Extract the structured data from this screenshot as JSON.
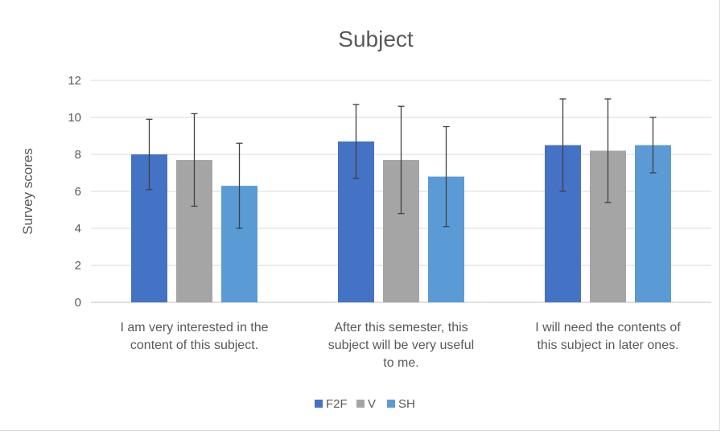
{
  "chart_data": {
    "type": "bar",
    "title": "Subject",
    "xlabel": "",
    "ylabel": "Survey scores",
    "ylim": [
      0,
      12
    ],
    "ytick_step": 2,
    "yticks": [
      "0",
      "2",
      "4",
      "6",
      "8",
      "10",
      "12"
    ],
    "grid": true,
    "legend_position": "bottom",
    "categories": [
      "I am very interested in the content of this subject.",
      "After this semester, this subject will be very useful to me.",
      "I will need the contents of this subject in later ones."
    ],
    "category_lines": [
      [
        "I am very interested in the",
        "content of this subject."
      ],
      [
        "After this semester, this",
        "subject will be very useful",
        "to me."
      ],
      [
        "I will need the contents of",
        "this subject in later ones."
      ]
    ],
    "series": [
      {
        "name": "F2F",
        "color": "#4472c4",
        "values": [
          8.0,
          8.7,
          8.5
        ],
        "error_low": [
          6.1,
          6.7,
          6.0
        ],
        "error_high": [
          9.9,
          10.7,
          11.0
        ]
      },
      {
        "name": "V",
        "color": "#a5a5a5",
        "values": [
          7.7,
          7.7,
          8.2
        ],
        "error_low": [
          5.2,
          4.8,
          5.4
        ],
        "error_high": [
          10.2,
          10.6,
          11.0
        ]
      },
      {
        "name": "SH",
        "color": "#5b9bd5",
        "values": [
          6.3,
          6.8,
          8.5
        ],
        "error_low": [
          4.0,
          4.1,
          7.0
        ],
        "error_high": [
          8.6,
          9.5,
          10.0
        ]
      }
    ]
  }
}
